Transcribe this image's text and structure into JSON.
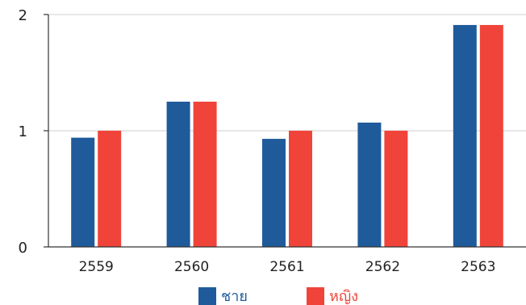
{
  "chart_data": {
    "type": "bar",
    "categories": [
      "2559",
      "2560",
      "2561",
      "2562",
      "2563"
    ],
    "series": [
      {
        "name": "ชาย",
        "color": "#1f5b9b",
        "values": [
          0.94,
          1.25,
          0.93,
          1.07,
          1.91
        ]
      },
      {
        "name": "หญิง",
        "color": "#f0443a",
        "values": [
          1.0,
          1.25,
          1.0,
          1.0,
          1.91
        ]
      }
    ],
    "yticks": [
      "0",
      "1",
      "2"
    ],
    "ylim": [
      0,
      2
    ],
    "grid": true,
    "legend": "bottom-center"
  }
}
